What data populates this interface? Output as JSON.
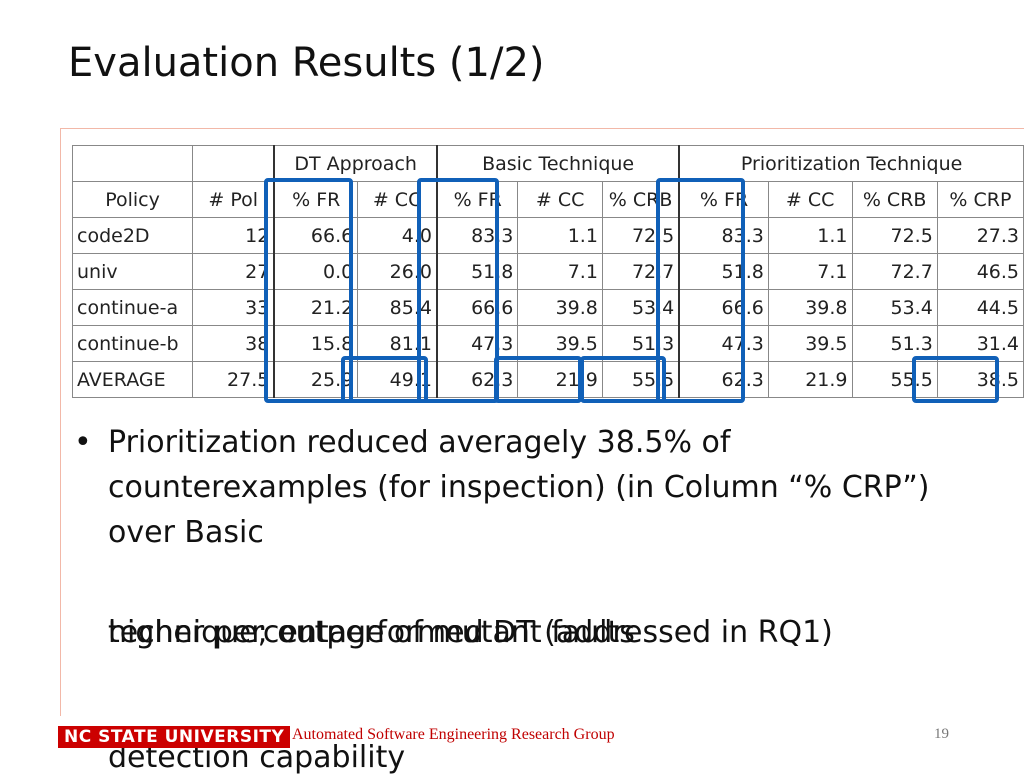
{
  "title": "Evaluation Results (1/2)",
  "table": {
    "groups": [
      {
        "label": "DT Approach",
        "span": 2
      },
      {
        "label": "Basic Technique",
        "span": 3
      },
      {
        "label": "Prioritization Technique",
        "span": 4
      }
    ],
    "columns": [
      "Policy",
      "# Pol",
      "% FR",
      "# CC",
      "% FR",
      "# CC",
      "% CRB",
      "% FR",
      "# CC",
      "% CRB",
      "% CRP"
    ],
    "rows": [
      [
        "code2D",
        "12",
        "66.6",
        "4.0",
        "83.3",
        "1.1",
        "72.5",
        "83.3",
        "1.1",
        "72.5",
        "27.3"
      ],
      [
        "univ",
        "27",
        "0.0",
        "26.0",
        "51.8",
        "7.1",
        "72.7",
        "51.8",
        "7.1",
        "72.7",
        "46.5"
      ],
      [
        "continue-a",
        "33",
        "21.2",
        "85.4",
        "66.6",
        "39.8",
        "53.4",
        "66.6",
        "39.8",
        "53.4",
        "44.5"
      ],
      [
        "continue-b",
        "38",
        "15.8",
        "81.1",
        "47.3",
        "39.5",
        "51.3",
        "47.3",
        "39.5",
        "51.3",
        "31.4"
      ],
      [
        "AVERAGE",
        "27.5",
        "25.9",
        "49.1",
        "62.3",
        "21.9",
        "55.5",
        "62.3",
        "21.9",
        "55.5",
        "38.5"
      ]
    ]
  },
  "bullet": {
    "text": "Prioritization reduced averagely 38.5% of counterexamples (for inspection) (in Column “% CRP”) over Basic",
    "overlap_a": "technique; outperformed DT (addressed in RQ1)",
    "overlap_b": "higher percentage of mutant faults",
    "last": "detection capability"
  },
  "footer": {
    "logo": "NC STATE UNIVERSITY",
    "group": "Automated Software Engineering Research Group",
    "page": "19"
  }
}
